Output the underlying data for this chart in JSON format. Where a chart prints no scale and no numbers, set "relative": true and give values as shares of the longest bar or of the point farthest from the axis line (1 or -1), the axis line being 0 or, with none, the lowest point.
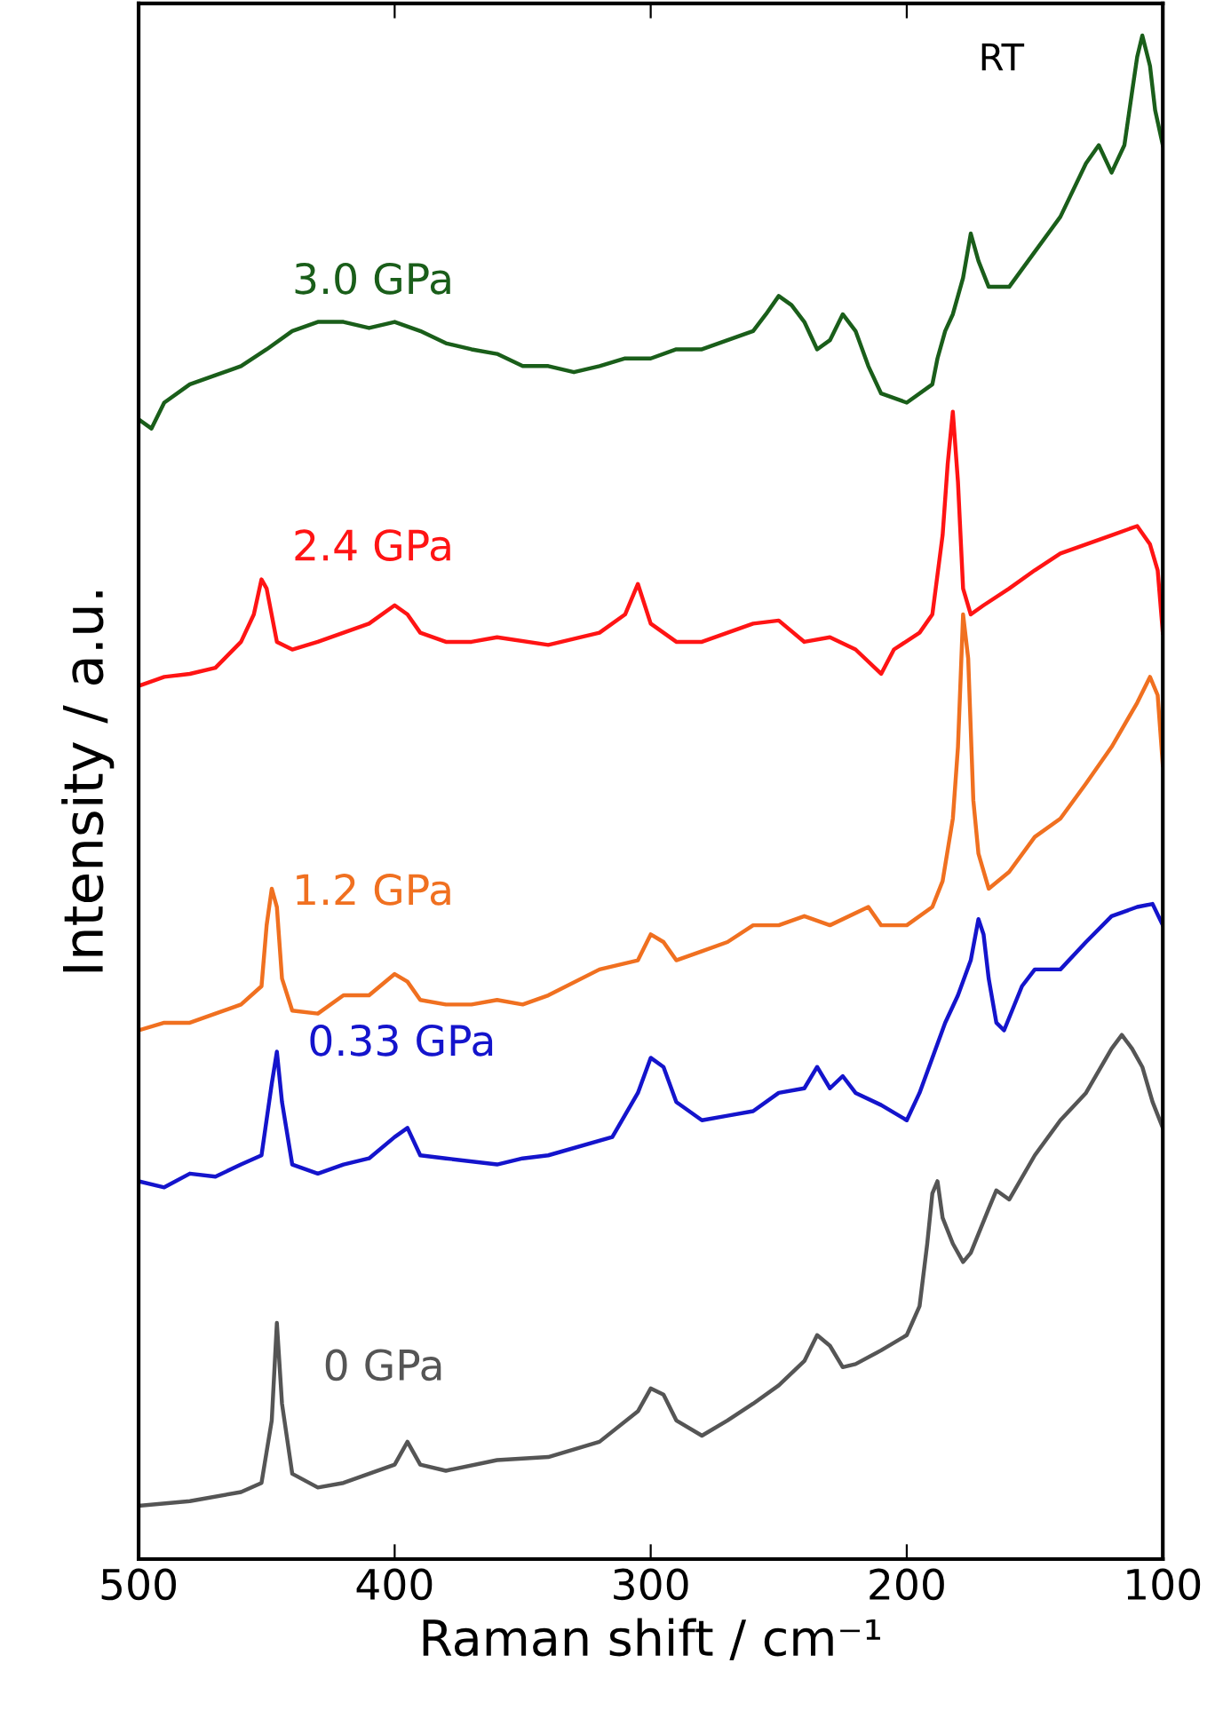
{
  "chart_data": {
    "type": "line",
    "relative": true,
    "xlabel": "Raman shift / cm⁻¹",
    "ylabel": "Intensity / a.u.",
    "xlim": [
      500,
      100
    ],
    "xticks": [
      500,
      400,
      300,
      200,
      100
    ],
    "legend": false,
    "grid": false,
    "tick_labels": "x",
    "annotations": [
      "RT"
    ],
    "series": [
      {
        "name": "0 GPa",
        "color": "#555555",
        "x": [
          500,
          480,
          460,
          452,
          448,
          446,
          444,
          440,
          430,
          420,
          400,
          395,
          390,
          380,
          360,
          340,
          320,
          305,
          300,
          295,
          290,
          280,
          270,
          260,
          250,
          240,
          235,
          230,
          225,
          220,
          210,
          200,
          195,
          192,
          190,
          188,
          186,
          182,
          178,
          175,
          168,
          165,
          160,
          150,
          140,
          130,
          120,
          116,
          112,
          108,
          104,
          100
        ],
        "values": [
          0.035,
          0.038,
          0.044,
          0.05,
          0.091,
          0.155,
          0.102,
          0.056,
          0.047,
          0.05,
          0.062,
          0.077,
          0.062,
          0.058,
          0.065,
          0.067,
          0.077,
          0.097,
          0.112,
          0.108,
          0.091,
          0.081,
          0.091,
          0.102,
          0.114,
          0.13,
          0.147,
          0.14,
          0.126,
          0.128,
          0.137,
          0.147,
          0.166,
          0.207,
          0.24,
          0.248,
          0.224,
          0.207,
          0.195,
          0.201,
          0.23,
          0.242,
          0.236,
          0.265,
          0.288,
          0.306,
          0.335,
          0.344,
          0.335,
          0.323,
          0.3,
          0.283
        ]
      },
      {
        "name": "0.33 GPa",
        "color": "#1414cc",
        "x": [
          500,
          490,
          480,
          470,
          460,
          452,
          448,
          446,
          444,
          440,
          430,
          420,
          410,
          400,
          395,
          390,
          380,
          360,
          350,
          340,
          315,
          305,
          300,
          295,
          290,
          280,
          270,
          260,
          250,
          240,
          235,
          230,
          225,
          220,
          210,
          200,
          195,
          190,
          185,
          180,
          175,
          172,
          170,
          168,
          165,
          162,
          155,
          150,
          140,
          130,
          120,
          110,
          104,
          100
        ],
        "values": [
          0.248,
          0.244,
          0.253,
          0.251,
          0.259,
          0.265,
          0.312,
          0.333,
          0.3,
          0.259,
          0.253,
          0.259,
          0.263,
          0.277,
          0.283,
          0.265,
          0.263,
          0.259,
          0.263,
          0.265,
          0.277,
          0.306,
          0.329,
          0.323,
          0.3,
          0.288,
          0.291,
          0.294,
          0.306,
          0.309,
          0.323,
          0.309,
          0.317,
          0.306,
          0.298,
          0.288,
          0.306,
          0.329,
          0.352,
          0.37,
          0.393,
          0.42,
          0.41,
          0.381,
          0.352,
          0.347,
          0.376,
          0.387,
          0.387,
          0.405,
          0.422,
          0.428,
          0.43,
          0.416
        ]
      },
      {
        "name": "1.2 GPa",
        "color": "#f07020",
        "x": [
          500,
          490,
          480,
          470,
          460,
          452,
          450,
          448,
          446,
          444,
          440,
          430,
          420,
          410,
          400,
          395,
          390,
          380,
          370,
          360,
          350,
          340,
          320,
          305,
          300,
          295,
          290,
          280,
          270,
          260,
          250,
          240,
          230,
          215,
          210,
          200,
          190,
          186,
          182,
          180,
          178,
          176,
          174,
          172,
          168,
          160,
          150,
          140,
          130,
          120,
          110,
          105,
          102,
          100
        ],
        "values": [
          0.347,
          0.352,
          0.352,
          0.358,
          0.364,
          0.376,
          0.416,
          0.44,
          0.428,
          0.381,
          0.36,
          0.358,
          0.37,
          0.37,
          0.384,
          0.379,
          0.367,
          0.364,
          0.364,
          0.367,
          0.364,
          0.37,
          0.387,
          0.393,
          0.41,
          0.405,
          0.393,
          0.399,
          0.405,
          0.416,
          0.416,
          0.422,
          0.416,
          0.428,
          0.416,
          0.416,
          0.428,
          0.445,
          0.486,
          0.533,
          0.62,
          0.591,
          0.498,
          0.463,
          0.44,
          0.451,
          0.474,
          0.486,
          0.509,
          0.533,
          0.562,
          0.579,
          0.567,
          0.521
        ]
      },
      {
        "name": "2.4 GPa",
        "color": "#ff1414",
        "x": [
          500,
          490,
          480,
          470,
          460,
          455,
          452,
          450,
          446,
          440,
          430,
          420,
          410,
          400,
          395,
          390,
          380,
          370,
          360,
          340,
          320,
          310,
          305,
          300,
          290,
          280,
          270,
          260,
          250,
          240,
          230,
          220,
          210,
          205,
          195,
          190,
          186,
          184,
          182,
          180,
          178,
          175,
          170,
          160,
          150,
          140,
          130,
          120,
          110,
          105,
          102,
          100
        ],
        "values": [
          0.573,
          0.579,
          0.581,
          0.585,
          0.602,
          0.62,
          0.643,
          0.637,
          0.602,
          0.597,
          0.602,
          0.608,
          0.614,
          0.626,
          0.62,
          0.608,
          0.602,
          0.602,
          0.605,
          0.6,
          0.608,
          0.62,
          0.64,
          0.614,
          0.602,
          0.602,
          0.608,
          0.614,
          0.616,
          0.602,
          0.605,
          0.597,
          0.581,
          0.597,
          0.608,
          0.62,
          0.672,
          0.719,
          0.753,
          0.707,
          0.637,
          0.62,
          0.626,
          0.637,
          0.649,
          0.66,
          0.666,
          0.672,
          0.678,
          0.666,
          0.649,
          0.608
        ]
      },
      {
        "name": "3.0 GPa",
        "color": "#1a5e1a",
        "x": [
          500,
          495,
          490,
          480,
          470,
          460,
          450,
          440,
          430,
          420,
          410,
          400,
          390,
          380,
          370,
          360,
          350,
          340,
          330,
          320,
          310,
          300,
          290,
          280,
          270,
          260,
          255,
          250,
          245,
          240,
          235,
          230,
          225,
          220,
          215,
          210,
          200,
          190,
          188,
          185,
          182,
          178,
          175,
          172,
          168,
          160,
          150,
          140,
          130,
          125,
          120,
          115,
          112,
          110,
          108,
          105,
          103,
          100
        ],
        "values": [
          0.748,
          0.742,
          0.759,
          0.771,
          0.777,
          0.783,
          0.794,
          0.806,
          0.812,
          0.812,
          0.808,
          0.812,
          0.806,
          0.798,
          0.794,
          0.791,
          0.783,
          0.783,
          0.779,
          0.783,
          0.788,
          0.788,
          0.794,
          0.794,
          0.8,
          0.806,
          0.817,
          0.829,
          0.823,
          0.812,
          0.794,
          0.8,
          0.817,
          0.806,
          0.783,
          0.765,
          0.759,
          0.771,
          0.788,
          0.806,
          0.817,
          0.841,
          0.87,
          0.852,
          0.835,
          0.835,
          0.858,
          0.881,
          0.916,
          0.928,
          0.91,
          0.928,
          0.963,
          0.986,
          1.0,
          0.98,
          0.951,
          0.928
        ]
      }
    ]
  }
}
